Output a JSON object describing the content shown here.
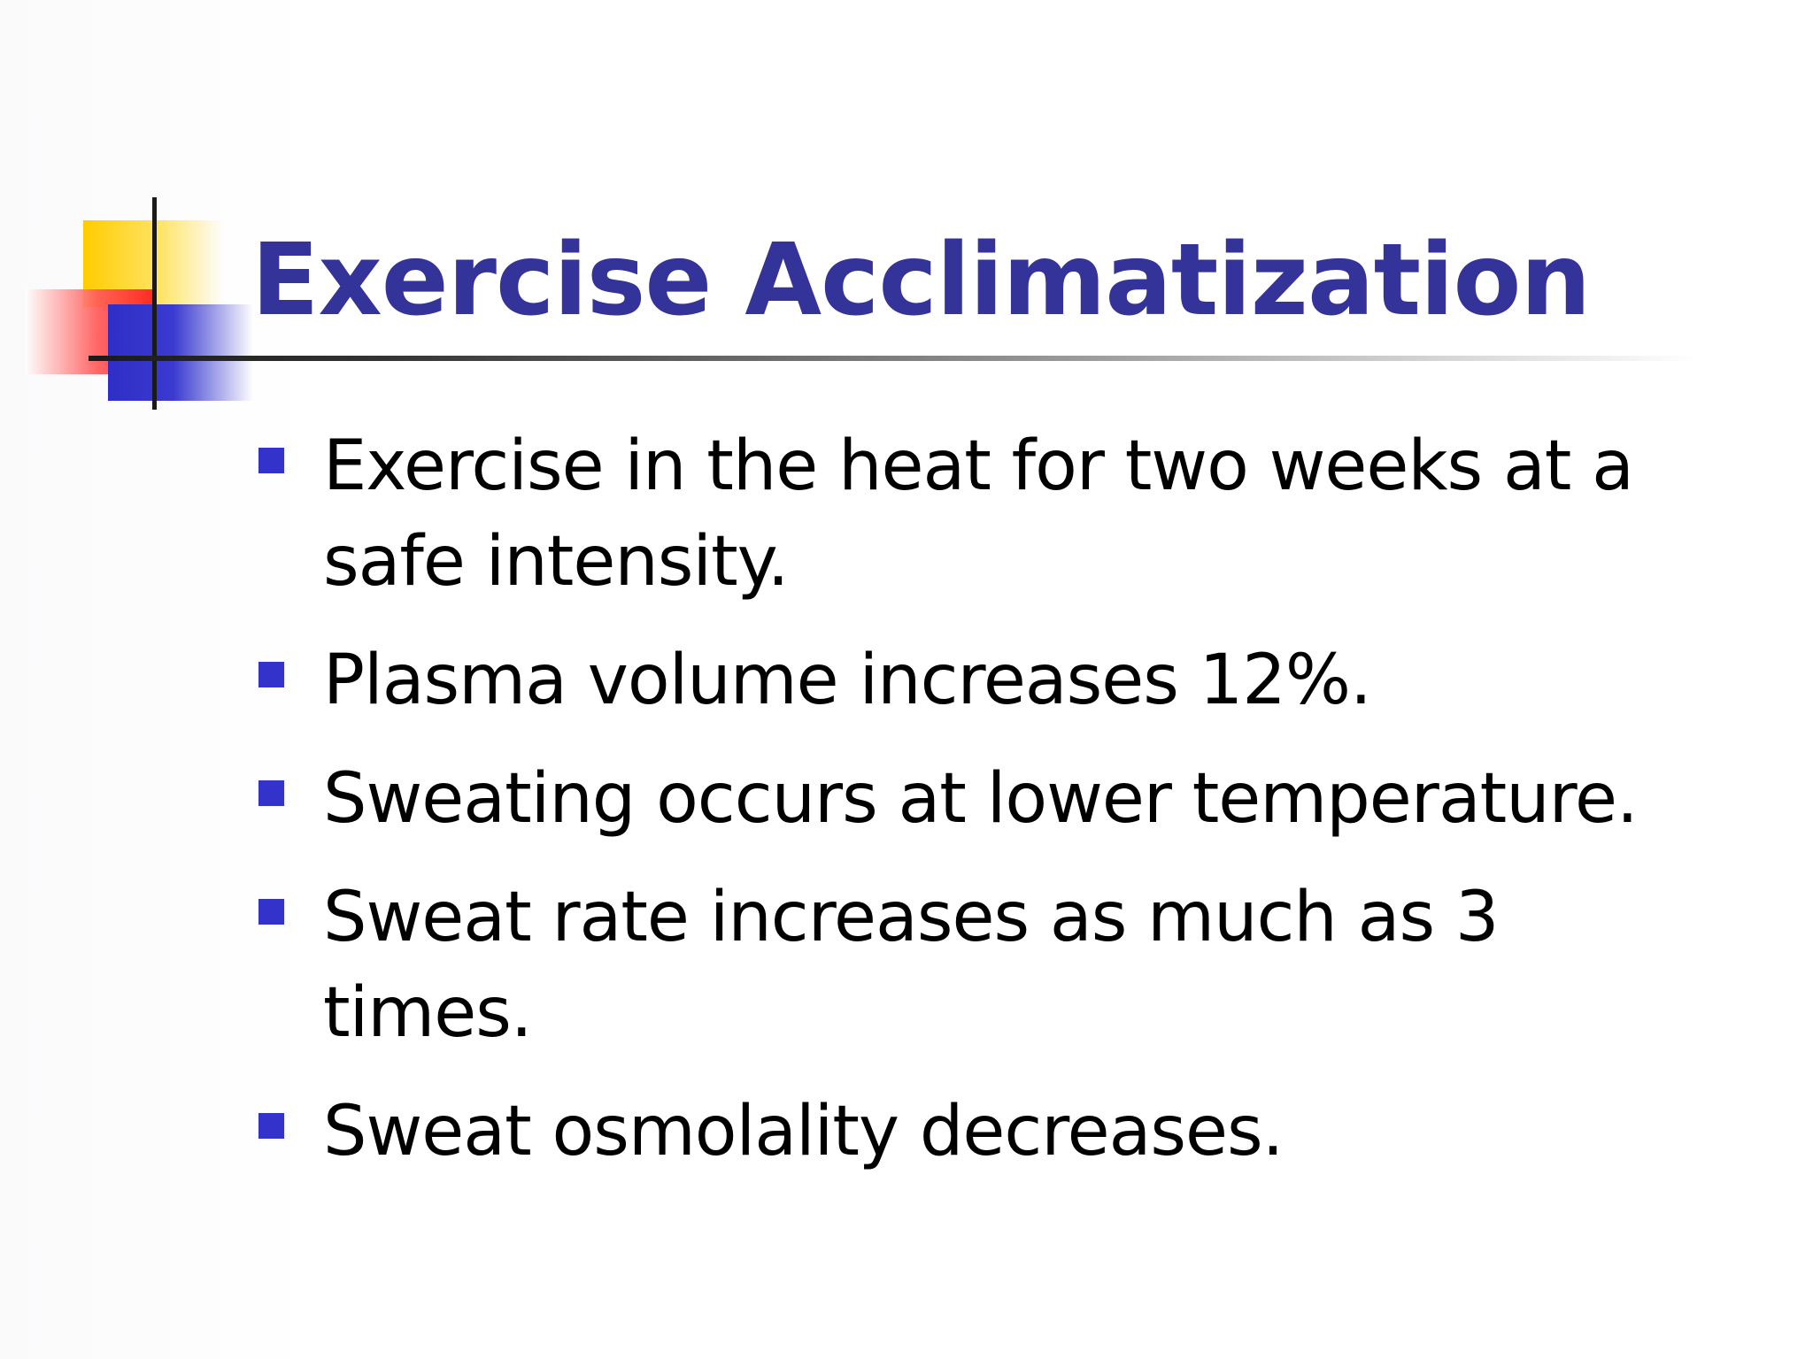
{
  "slide": {
    "title": "Exercise Acclimatization",
    "bullets": [
      "Exercise in the heat for two weeks at a safe intensity.",
      "Plasma volume increases 12%.",
      "Sweating occurs at lower temperature.",
      "Sweat rate increases as much as 3 times.",
      "Sweat osmolality decreases."
    ]
  },
  "colors": {
    "title": "#33339a",
    "bullet_marker": "#3333cc",
    "text": "#000000",
    "accent_yellow": "#ffcc00",
    "accent_red": "#ff1a1a",
    "accent_blue": "#2f2fc7"
  }
}
